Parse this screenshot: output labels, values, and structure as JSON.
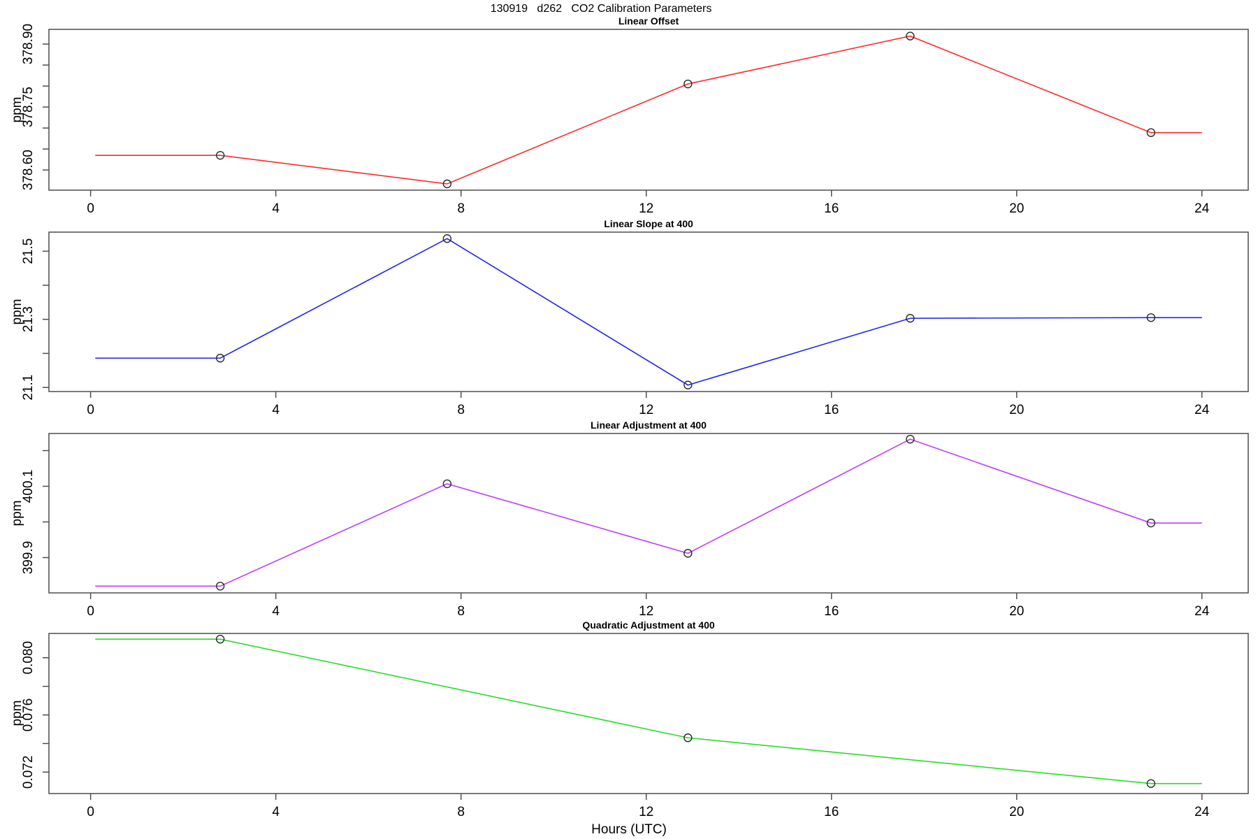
{
  "main": {
    "title": "130919   d262   CO2 Calibration Parameters",
    "xlabel": "Hours (UTC)"
  },
  "style": {
    "frame_color": "#4d4d4d",
    "marker_color": "#2a2a2a",
    "text_color": "#000000"
  },
  "chart_data": [
    {
      "type": "line",
      "title": "Linear Offset",
      "ylabel": "ppm",
      "color": "#ff2a2a",
      "xlim": [
        -0.9,
        25.0
      ],
      "ylim": [
        378.552,
        378.935
      ],
      "xticks": [
        0,
        4,
        8,
        12,
        16,
        20,
        24
      ],
      "yticks": [
        {
          "v": 378.6,
          "label": "378.60"
        },
        {
          "v": 378.65,
          "label": ""
        },
        {
          "v": 378.7,
          "label": ""
        },
        {
          "v": 378.75,
          "label": "378.75"
        },
        {
          "v": 378.8,
          "label": ""
        },
        {
          "v": 378.85,
          "label": ""
        },
        {
          "v": 378.9,
          "label": "378.90"
        }
      ],
      "x": [
        0.1,
        2.8,
        7.7,
        12.9,
        17.7,
        22.9,
        24.0
      ],
      "y": [
        378.635,
        378.635,
        378.567,
        378.805,
        378.919,
        378.689,
        378.689
      ],
      "markers": [
        false,
        true,
        true,
        true,
        true,
        true,
        false
      ]
    },
    {
      "type": "line",
      "title": "Linear Slope at 400",
      "ylabel": "ppm",
      "color": "#2222f0",
      "xlim": [
        -0.9,
        25.0
      ],
      "ylim": [
        21.088,
        21.556
      ],
      "xticks": [
        0,
        4,
        8,
        12,
        16,
        20,
        24
      ],
      "yticks": [
        {
          "v": 21.1,
          "label": "21.1"
        },
        {
          "v": 21.2,
          "label": ""
        },
        {
          "v": 21.3,
          "label": "21.3"
        },
        {
          "v": 21.4,
          "label": ""
        },
        {
          "v": 21.5,
          "label": "21.5"
        }
      ],
      "x": [
        0.1,
        2.8,
        7.7,
        12.9,
        17.7,
        22.9,
        24.0
      ],
      "y": [
        21.186,
        21.186,
        21.537,
        21.107,
        21.303,
        21.305,
        21.305
      ],
      "markers": [
        false,
        true,
        true,
        true,
        true,
        true,
        false
      ]
    },
    {
      "type": "line",
      "title": "Linear Adjustment at 400",
      "ylabel": "ppm",
      "color": "#bf3eff",
      "xlim": [
        -0.9,
        25.0
      ],
      "ylim": [
        399.801,
        400.248
      ],
      "xticks": [
        0,
        4,
        8,
        12,
        16,
        20,
        24
      ],
      "yticks": [
        {
          "v": 399.9,
          "label": "399.9"
        },
        {
          "v": 400.0,
          "label": ""
        },
        {
          "v": 400.1,
          "label": "400.1"
        },
        {
          "v": 400.2,
          "label": ""
        }
      ],
      "x": [
        0.1,
        2.8,
        7.7,
        12.9,
        17.7,
        22.9,
        24.0
      ],
      "y": [
        399.82,
        399.82,
        400.107,
        399.912,
        400.232,
        399.997,
        399.997
      ],
      "markers": [
        false,
        true,
        true,
        true,
        true,
        true,
        false
      ]
    },
    {
      "type": "line",
      "title": "Quadratic Adjustment at 400",
      "ylabel": "ppm",
      "color": "#27dd27",
      "xlim": [
        -0.9,
        25.0
      ],
      "ylim": [
        0.0705,
        0.0817
      ],
      "xticks": [
        0,
        4,
        8,
        12,
        16,
        20,
        24
      ],
      "yticks": [
        {
          "v": 0.072,
          "label": "0.072"
        },
        {
          "v": 0.074,
          "label": ""
        },
        {
          "v": 0.076,
          "label": "0.076"
        },
        {
          "v": 0.078,
          "label": ""
        },
        {
          "v": 0.08,
          "label": "0.080"
        }
      ],
      "x": [
        0.1,
        2.8,
        12.9,
        22.9,
        24.0
      ],
      "y": [
        0.0813,
        0.0813,
        0.0744,
        0.0712,
        0.0712
      ],
      "markers": [
        false,
        true,
        true,
        true,
        false
      ]
    }
  ]
}
